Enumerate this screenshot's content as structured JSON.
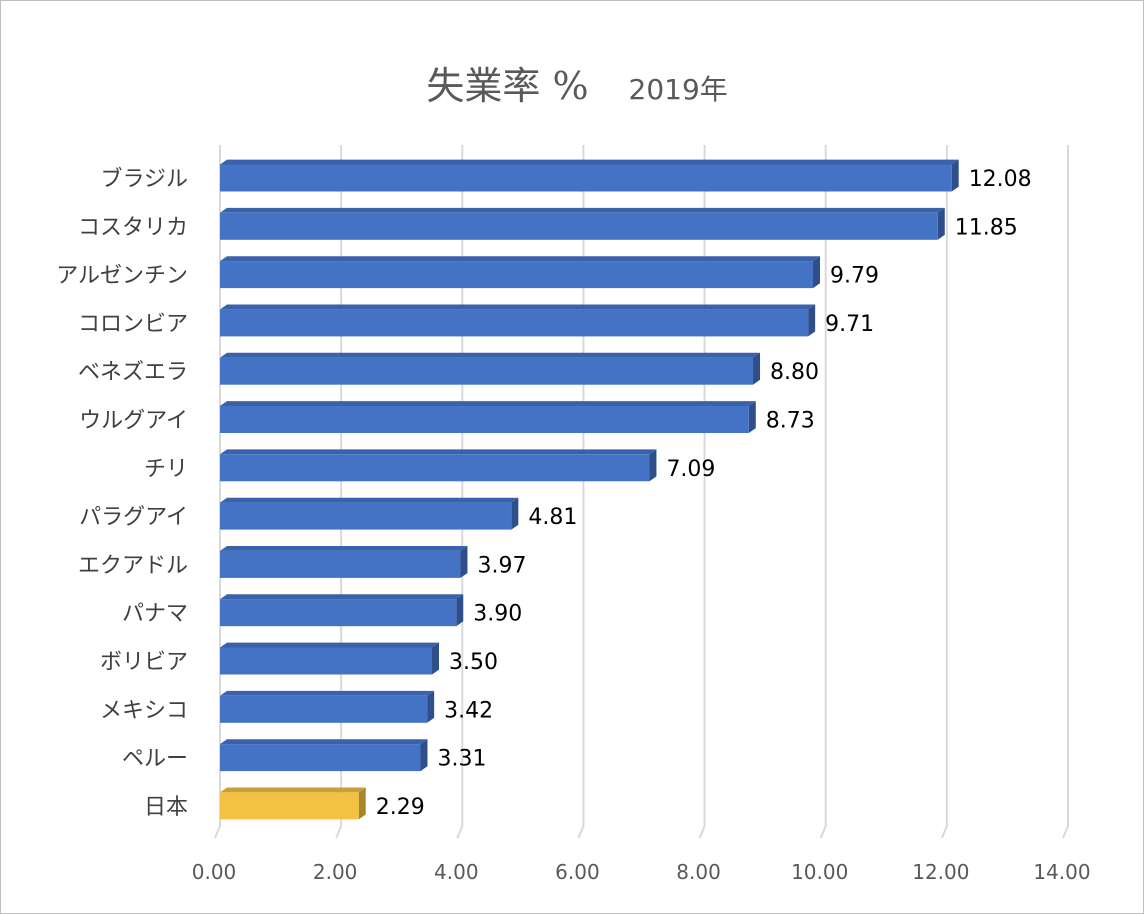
{
  "title": "失業率 %",
  "subtitle": "2019年",
  "chart_data": {
    "type": "bar",
    "orientation": "horizontal",
    "style": "3d",
    "title": "失業率 %",
    "subtitle": "2019年",
    "xlabel": "",
    "ylabel": "",
    "xlim": [
      0,
      14
    ],
    "x_ticks": [
      "0.00",
      "2.00",
      "4.00",
      "6.00",
      "8.00",
      "10.00",
      "12.00",
      "14.00"
    ],
    "grid": true,
    "legend": "none",
    "categories": [
      "ブラジル",
      "コスタリカ",
      "アルゼンチン",
      "コロンビア",
      "ベネズエラ",
      "ウルグアイ",
      "チリ",
      "パラグアイ",
      "エクアドル",
      "パナマ",
      "ボリビア",
      "メキシコ",
      "ペルー",
      "日本"
    ],
    "values": [
      12.08,
      11.85,
      9.79,
      9.71,
      8.8,
      8.73,
      7.09,
      4.81,
      3.97,
      3.9,
      3.5,
      3.42,
      3.31,
      2.29
    ],
    "data_labels": [
      "12.08",
      "11.85",
      "9.79",
      "9.71",
      "8.80",
      "8.73",
      "7.09",
      "4.81",
      "3.97",
      "3.90",
      "3.50",
      "3.42",
      "3.31",
      "2.29"
    ],
    "colors": {
      "default": "#4472c4",
      "default_side": "#2f4f8a",
      "default_top": "#3a62aa",
      "highlight": "#f4c242",
      "highlight_side": "#a8852a",
      "highlight_top": "#c9a035",
      "highlight_category": "日本",
      "grid": "#d9d9d9"
    }
  }
}
